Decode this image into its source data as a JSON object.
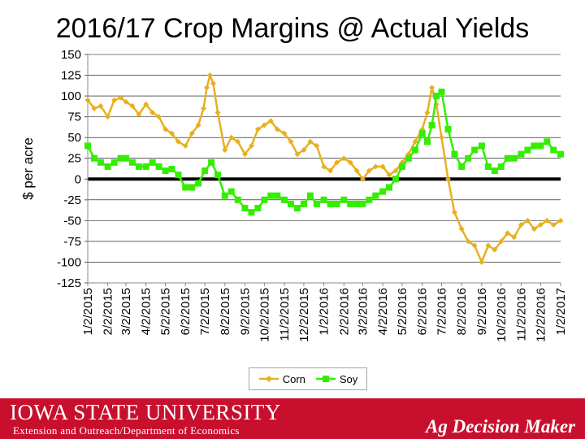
{
  "chart_data": {
    "type": "line",
    "title": "2016/17 Crop Margins @ Actual Yields",
    "ylabel": "$ per acre",
    "xlabel": "",
    "ylim": [
      -125,
      150
    ],
    "yticks": [
      150,
      125,
      100,
      75,
      50,
      25,
      0,
      -25,
      -50,
      -75,
      -100,
      -125
    ],
    "xlim": [
      "2015-01-02",
      "2017-01-02"
    ],
    "x_tick_labels": [
      "1/2/2015",
      "2/2/2015",
      "3/2/2015",
      "4/2/2015",
      "5/2/2015",
      "6/2/2015",
      "7/2/2015",
      "8/2/2015",
      "9/2/2015",
      "10/2/2015",
      "11/2/2015",
      "12/2/2015",
      "1/2/2016",
      "2/2/2016",
      "3/2/2016",
      "4/2/2016",
      "5/2/2016",
      "6/2/2016",
      "7/2/2016",
      "8/2/2016",
      "9/2/2016",
      "10/2/2016",
      "11/2/2016",
      "12/2/2016",
      "1/2/2017"
    ],
    "x_ticks": [
      "2015-01-02",
      "2015-02-02",
      "2015-03-02",
      "2015-04-02",
      "2015-05-02",
      "2015-06-02",
      "2015-07-02",
      "2015-08-02",
      "2015-09-02",
      "2015-10-02",
      "2015-11-02",
      "2015-12-02",
      "2016-01-02",
      "2016-02-02",
      "2016-03-02",
      "2016-04-02",
      "2016-05-02",
      "2016-06-02",
      "2016-07-02",
      "2016-08-02",
      "2016-09-02",
      "2016-10-02",
      "2016-11-02",
      "2016-12-02",
      "2017-01-02"
    ],
    "zero_line": true,
    "grid": true,
    "legend": "bottom",
    "series": [
      {
        "name": "Corn",
        "color": "#e6b020",
        "x": [
          "2015-01-02",
          "2015-01-12",
          "2015-01-22",
          "2015-02-02",
          "2015-02-12",
          "2015-02-22",
          "2015-03-02",
          "2015-03-12",
          "2015-03-22",
          "2015-04-02",
          "2015-04-12",
          "2015-04-22",
          "2015-05-02",
          "2015-05-12",
          "2015-05-22",
          "2015-06-02",
          "2015-06-12",
          "2015-06-22",
          "2015-06-30",
          "2015-07-05",
          "2015-07-10",
          "2015-07-15",
          "2015-07-22",
          "2015-08-02",
          "2015-08-12",
          "2015-08-22",
          "2015-09-02",
          "2015-09-12",
          "2015-09-22",
          "2015-10-02",
          "2015-10-12",
          "2015-10-22",
          "2015-11-02",
          "2015-11-12",
          "2015-11-22",
          "2015-12-02",
          "2015-12-12",
          "2015-12-22",
          "2016-01-02",
          "2016-01-12",
          "2016-01-22",
          "2016-02-02",
          "2016-02-12",
          "2016-02-22",
          "2016-03-02",
          "2016-03-12",
          "2016-03-22",
          "2016-04-02",
          "2016-04-12",
          "2016-04-22",
          "2016-05-02",
          "2016-05-12",
          "2016-05-22",
          "2016-06-02",
          "2016-06-10",
          "2016-06-17",
          "2016-06-24",
          "2016-07-02",
          "2016-07-12",
          "2016-07-22",
          "2016-08-02",
          "2016-08-12",
          "2016-08-22",
          "2016-09-02",
          "2016-09-12",
          "2016-09-22",
          "2016-10-02",
          "2016-10-12",
          "2016-10-22",
          "2016-11-02",
          "2016-11-12",
          "2016-11-22",
          "2016-12-02",
          "2016-12-12",
          "2016-12-22",
          "2017-01-02"
        ],
        "values": [
          95,
          85,
          88,
          75,
          95,
          98,
          93,
          88,
          78,
          90,
          80,
          75,
          60,
          55,
          45,
          40,
          55,
          65,
          85,
          110,
          125,
          115,
          80,
          35,
          50,
          45,
          30,
          40,
          60,
          65,
          70,
          60,
          55,
          45,
          30,
          35,
          45,
          40,
          15,
          10,
          20,
          25,
          20,
          10,
          0,
          10,
          15,
          15,
          5,
          10,
          20,
          30,
          45,
          60,
          80,
          110,
          90,
          50,
          0,
          -40,
          -60,
          -75,
          -80,
          -100,
          -80,
          -85,
          -75,
          -65,
          -70,
          -55,
          -50,
          -60,
          -55,
          -50,
          -55,
          -50
        ]
      },
      {
        "name": "Soy",
        "color": "#33ee00",
        "x": [
          "2015-01-02",
          "2015-01-12",
          "2015-01-22",
          "2015-02-02",
          "2015-02-12",
          "2015-02-22",
          "2015-03-02",
          "2015-03-12",
          "2015-03-22",
          "2015-04-02",
          "2015-04-12",
          "2015-04-22",
          "2015-05-02",
          "2015-05-12",
          "2015-05-22",
          "2015-06-02",
          "2015-06-12",
          "2015-06-22",
          "2015-07-02",
          "2015-07-12",
          "2015-07-22",
          "2015-08-02",
          "2015-08-12",
          "2015-08-22",
          "2015-09-02",
          "2015-09-12",
          "2015-09-22",
          "2015-10-02",
          "2015-10-12",
          "2015-10-22",
          "2015-11-02",
          "2015-11-12",
          "2015-11-22",
          "2015-12-02",
          "2015-12-12",
          "2015-12-22",
          "2016-01-02",
          "2016-01-12",
          "2016-01-22",
          "2016-02-02",
          "2016-02-12",
          "2016-02-22",
          "2016-03-02",
          "2016-03-12",
          "2016-03-22",
          "2016-04-02",
          "2016-04-12",
          "2016-04-22",
          "2016-05-02",
          "2016-05-12",
          "2016-05-22",
          "2016-06-02",
          "2016-06-10",
          "2016-06-17",
          "2016-06-24",
          "2016-07-02",
          "2016-07-12",
          "2016-07-22",
          "2016-08-02",
          "2016-08-12",
          "2016-08-22",
          "2016-09-02",
          "2016-09-12",
          "2016-09-22",
          "2016-10-02",
          "2016-10-12",
          "2016-10-22",
          "2016-11-02",
          "2016-11-12",
          "2016-11-22",
          "2016-12-02",
          "2016-12-12",
          "2016-12-22",
          "2017-01-02"
        ],
        "values": [
          40,
          25,
          20,
          15,
          20,
          25,
          25,
          20,
          15,
          15,
          20,
          15,
          10,
          12,
          5,
          -10,
          -10,
          -5,
          10,
          20,
          5,
          -20,
          -15,
          -25,
          -35,
          -40,
          -35,
          -25,
          -20,
          -20,
          -25,
          -30,
          -35,
          -30,
          -20,
          -30,
          -25,
          -30,
          -30,
          -25,
          -30,
          -30,
          -30,
          -25,
          -20,
          -15,
          -10,
          0,
          15,
          25,
          35,
          55,
          45,
          65,
          100,
          105,
          60,
          30,
          15,
          25,
          35,
          40,
          15,
          10,
          15,
          25,
          25,
          30,
          35,
          40,
          40,
          45,
          35,
          30
        ]
      }
    ]
  },
  "footer": {
    "university": "IOWA STATE UNIVERSITY",
    "department": "Extension and Outreach/Department of Economics",
    "brand": "Ag Decision Maker"
  }
}
